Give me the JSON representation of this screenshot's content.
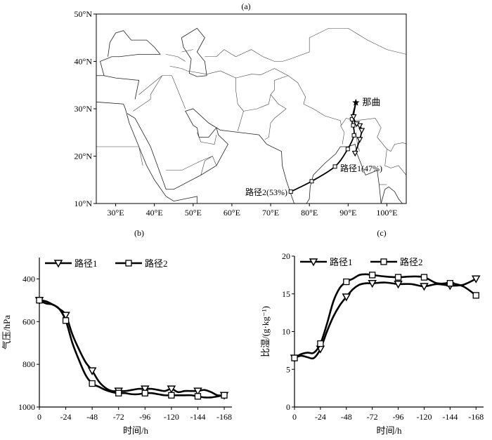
{
  "panel_labels": {
    "a": "(a)",
    "b": "(b)",
    "c": "(c)"
  },
  "map": {
    "lon_range": [
      25,
      105
    ],
    "lat_range": [
      10,
      50
    ],
    "lon_ticks": [
      30,
      40,
      50,
      60,
      70,
      80,
      90,
      100
    ],
    "lon_tick_labels": [
      "30°E",
      "40°E",
      "50°E",
      "60°E",
      "70°E",
      "80°E",
      "90°E",
      "100°E"
    ],
    "lat_ticks": [
      10,
      20,
      30,
      40,
      50
    ],
    "lat_tick_labels": [
      "10°N",
      "20°N",
      "30°N",
      "40°N",
      "50°N"
    ],
    "station": {
      "name": "那曲",
      "lon": 92.0,
      "lat": 31.3
    },
    "route1": {
      "label": "路径1(47%)",
      "points": [
        [
          91.8,
          20.6
        ],
        [
          93.0,
          23.5
        ],
        [
          93.5,
          25.4
        ],
        [
          93.0,
          26.4
        ],
        [
          92.2,
          26.8
        ],
        [
          91.4,
          28.3
        ],
        [
          92.0,
          31.3
        ]
      ]
    },
    "route2": {
      "label": "路径2(53%)",
      "points": [
        [
          75.2,
          12.5
        ],
        [
          80.6,
          14.7
        ],
        [
          86.6,
          17.8
        ],
        [
          89.9,
          21.5
        ],
        [
          91.5,
          24.4
        ],
        [
          91.3,
          26.5
        ],
        [
          91.0,
          27.8
        ],
        [
          92.0,
          31.3
        ]
      ]
    }
  },
  "chart_data": [
    {
      "type": "line",
      "title": "(b)",
      "xlabel": "时间/h",
      "ylabel": "气压/hPa",
      "x_ticks": [
        0,
        -24,
        -48,
        -72,
        -96,
        -120,
        -144,
        -168
      ],
      "x_tick_labels": [
        "0",
        "-24",
        "-48",
        "-72",
        "-96",
        "-120",
        "-144",
        "-168"
      ],
      "y_ticks": [
        400,
        600,
        800,
        1000
      ],
      "y_tick_labels": [
        "400",
        "600",
        "800",
        "1000"
      ],
      "xlim": [
        0,
        -175
      ],
      "ylim": [
        300,
        1000
      ],
      "y_inverted": true,
      "legend": "top-left",
      "x": [
        0,
        -6,
        -12,
        -18,
        -24,
        -30,
        -36,
        -42,
        -48,
        -54,
        -60,
        -66,
        -72,
        -78,
        -84,
        -90,
        -96,
        -102,
        -108,
        -114,
        -120,
        -126,
        -132,
        -138,
        -144,
        -150,
        -156,
        -162,
        -168
      ],
      "series": [
        {
          "name": "路径1",
          "marker": "triangle-down",
          "values": [
            500,
            515,
            520,
            540,
            570,
            660,
            730,
            790,
            830,
            880,
            910,
            925,
            925,
            925,
            920,
            915,
            915,
            915,
            920,
            925,
            915,
            930,
            925,
            925,
            925,
            920,
            930,
            945,
            945
          ]
        },
        {
          "name": "路径2",
          "marker": "square",
          "values": [
            500,
            505,
            520,
            540,
            595,
            700,
            780,
            850,
            890,
            905,
            920,
            930,
            935,
            935,
            940,
            940,
            935,
            935,
            940,
            945,
            945,
            945,
            945,
            945,
            950,
            955,
            955,
            950,
            945
          ]
        }
      ]
    },
    {
      "type": "line",
      "title": "(c)",
      "xlabel": "时间/h",
      "ylabel": "比湿/(g·kg⁻¹)",
      "x_ticks": [
        0,
        -24,
        -48,
        -72,
        -96,
        -120,
        -144,
        -168
      ],
      "x_tick_labels": [
        "0",
        "-24",
        "-48",
        "-72",
        "-96",
        "-120",
        "-144",
        "-168"
      ],
      "y_ticks": [
        0,
        5,
        10,
        15,
        20
      ],
      "y_tick_labels": [
        "0",
        "5",
        "10",
        "15",
        "20"
      ],
      "xlim": [
        0,
        -175
      ],
      "ylim": [
        0,
        20
      ],
      "y_inverted": false,
      "legend": "top-left",
      "x": [
        0,
        -6,
        -12,
        -18,
        -24,
        -30,
        -36,
        -42,
        -48,
        -54,
        -60,
        -66,
        -72,
        -84,
        -96,
        -108,
        -120,
        -132,
        -144,
        -156,
        -168
      ],
      "series": [
        {
          "name": "路径1",
          "marker": "triangle-down",
          "values": [
            6.5,
            6.8,
            6.6,
            6.5,
            7.7,
            10.0,
            12.0,
            13.5,
            14.6,
            15.6,
            16.2,
            16.4,
            16.4,
            16.5,
            16.3,
            16.3,
            16.0,
            16.3,
            16.1,
            16.2,
            17.0
          ]
        },
        {
          "name": "路径2",
          "marker": "square",
          "values": [
            6.5,
            7.0,
            7.2,
            7.2,
            8.4,
            11.0,
            14.0,
            15.8,
            16.6,
            17.0,
            17.5,
            17.6,
            17.5,
            17.3,
            17.2,
            17.3,
            17.2,
            16.4,
            16.4,
            16.0,
            14.8
          ]
        }
      ]
    }
  ]
}
